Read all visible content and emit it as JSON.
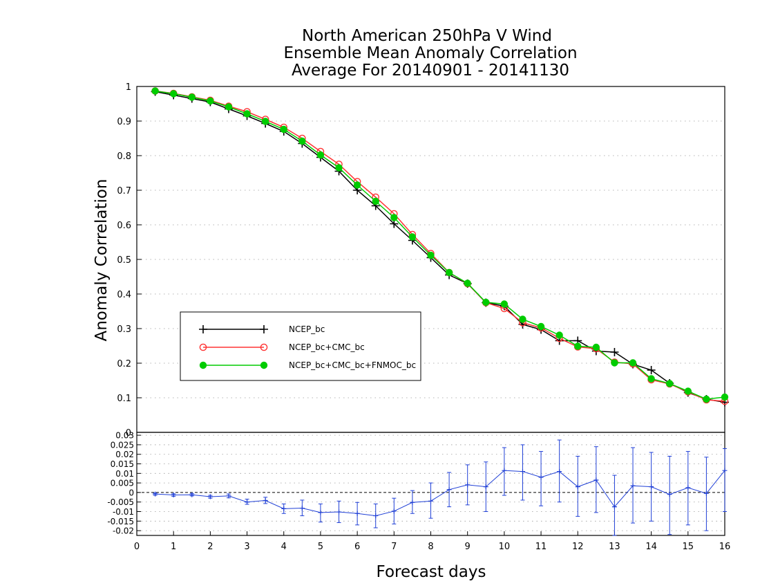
{
  "chart_data": [
    {
      "type": "line",
      "title": [
        "North American 250hPa V Wind",
        "Ensemble Mean Anomaly Correlation",
        "Average For 20140901 - 20141130"
      ],
      "xlabel": "Forecast days",
      "ylabel": "Anomaly Correlation",
      "xlim": [
        0,
        16
      ],
      "ylim": [
        0,
        1
      ],
      "xticks": [
        "0",
        "1",
        "2",
        "3",
        "4",
        "5",
        "6",
        "7",
        "8",
        "9",
        "10",
        "11",
        "12",
        "13",
        "14",
        "15",
        "16"
      ],
      "yticks": [
        "0",
        "0.1",
        "0.2",
        "0.3",
        "0.4",
        "0.5",
        "0.6",
        "0.7",
        "0.8",
        "0.9",
        "1"
      ],
      "grid": true,
      "legend_position": "left",
      "x": [
        0.5,
        1,
        1.5,
        2,
        2.5,
        3,
        3.5,
        4,
        4.5,
        5,
        5.5,
        6,
        6.5,
        7,
        7.5,
        8,
        8.5,
        9,
        9.5,
        10,
        10.5,
        11,
        11.5,
        12,
        12.5,
        13,
        13.5,
        14,
        14.5,
        15,
        15.5,
        16
      ],
      "series": [
        {
          "name": "NCEP_bc",
          "color": "#000000",
          "marker": "plus",
          "values": [
            0.985,
            0.975,
            0.965,
            0.955,
            0.935,
            0.915,
            0.893,
            0.87,
            0.835,
            0.795,
            0.755,
            0.7,
            0.655,
            0.603,
            0.555,
            0.505,
            0.455,
            0.43,
            0.375,
            0.365,
            0.312,
            0.297,
            0.265,
            0.265,
            0.235,
            0.232,
            0.197,
            0.18,
            0.142,
            0.115,
            0.096,
            0.087
          ]
        },
        {
          "name": "NCEP_bc+CMC_bc",
          "color": "#ff3333",
          "marker": "open-circle",
          "values": [
            0.987,
            0.98,
            0.97,
            0.96,
            0.943,
            0.927,
            0.905,
            0.882,
            0.85,
            0.812,
            0.775,
            0.725,
            0.68,
            0.632,
            0.572,
            0.517,
            0.462,
            0.43,
            0.375,
            0.358,
            0.317,
            0.302,
            0.272,
            0.247,
            0.242,
            0.203,
            0.198,
            0.152,
            0.14,
            0.117,
            0.094,
            0.09
          ]
        },
        {
          "name": "NCEP_bc+CMC_bc+FNMOC_bc",
          "color": "#00cc00",
          "marker": "filled-circle",
          "values": [
            0.987,
            0.979,
            0.969,
            0.958,
            0.941,
            0.921,
            0.899,
            0.876,
            0.842,
            0.802,
            0.765,
            0.715,
            0.668,
            0.621,
            0.565,
            0.512,
            0.462,
            0.431,
            0.376,
            0.371,
            0.327,
            0.306,
            0.281,
            0.249,
            0.246,
            0.201,
            0.201,
            0.155,
            0.141,
            0.119,
            0.096,
            0.102
          ]
        }
      ]
    },
    {
      "type": "line",
      "xlim": [
        0,
        16
      ],
      "ylim": [
        -0.0225,
        0.0315
      ],
      "yticks": [
        "0.03",
        "0.025",
        "0.02",
        "0.015",
        "0.01",
        "0.005",
        "0",
        "-0.005",
        "-0.01",
        "-0.015",
        "-0.02"
      ],
      "grid": true,
      "color": "#1f3fd6",
      "x": [
        0.5,
        1,
        1.5,
        2,
        2.5,
        3,
        3.5,
        4,
        4.5,
        5,
        5.5,
        6,
        6.5,
        7,
        7.5,
        8,
        8.5,
        9,
        9.5,
        10,
        10.5,
        11,
        11.5,
        12,
        12.5,
        13,
        13.5,
        14,
        14.5,
        15,
        15.5,
        16
      ],
      "values": [
        -0.0008,
        -0.0013,
        -0.0012,
        -0.0022,
        -0.0018,
        -0.005,
        -0.0042,
        -0.0085,
        -0.0082,
        -0.0105,
        -0.0102,
        -0.011,
        -0.0122,
        -0.0098,
        -0.0052,
        -0.0045,
        0.0015,
        0.004,
        0.003,
        0.0115,
        0.011,
        0.008,
        0.011,
        0.003,
        0.0065,
        -0.0075,
        0.0035,
        0.003,
        -0.001,
        0.0025,
        -0.0005,
        0.0115
      ],
      "error_low": [
        -0.0015,
        -0.002,
        -0.0018,
        -0.003,
        -0.0028,
        -0.0062,
        -0.0058,
        -0.011,
        -0.0122,
        -0.0155,
        -0.0158,
        -0.017,
        -0.0185,
        -0.0165,
        -0.011,
        -0.0135,
        -0.0075,
        -0.0065,
        -0.01,
        -0.0015,
        -0.004,
        -0.007,
        -0.005,
        -0.0125,
        -0.0105,
        -0.023,
        -0.016,
        -0.015,
        -0.022,
        -0.017,
        -0.02,
        -0.01
      ],
      "error_high": [
        -0.0003,
        -0.0007,
        -0.0005,
        -0.0015,
        -0.0008,
        -0.0035,
        -0.0025,
        -0.006,
        -0.004,
        -0.006,
        -0.0045,
        -0.0052,
        -0.006,
        -0.003,
        0.001,
        0.005,
        0.0105,
        0.0145,
        0.016,
        0.0235,
        0.025,
        0.0215,
        0.0275,
        0.019,
        0.024,
        0.009,
        0.0235,
        0.021,
        0.019,
        0.0215,
        0.0185,
        0.023
      ]
    }
  ]
}
